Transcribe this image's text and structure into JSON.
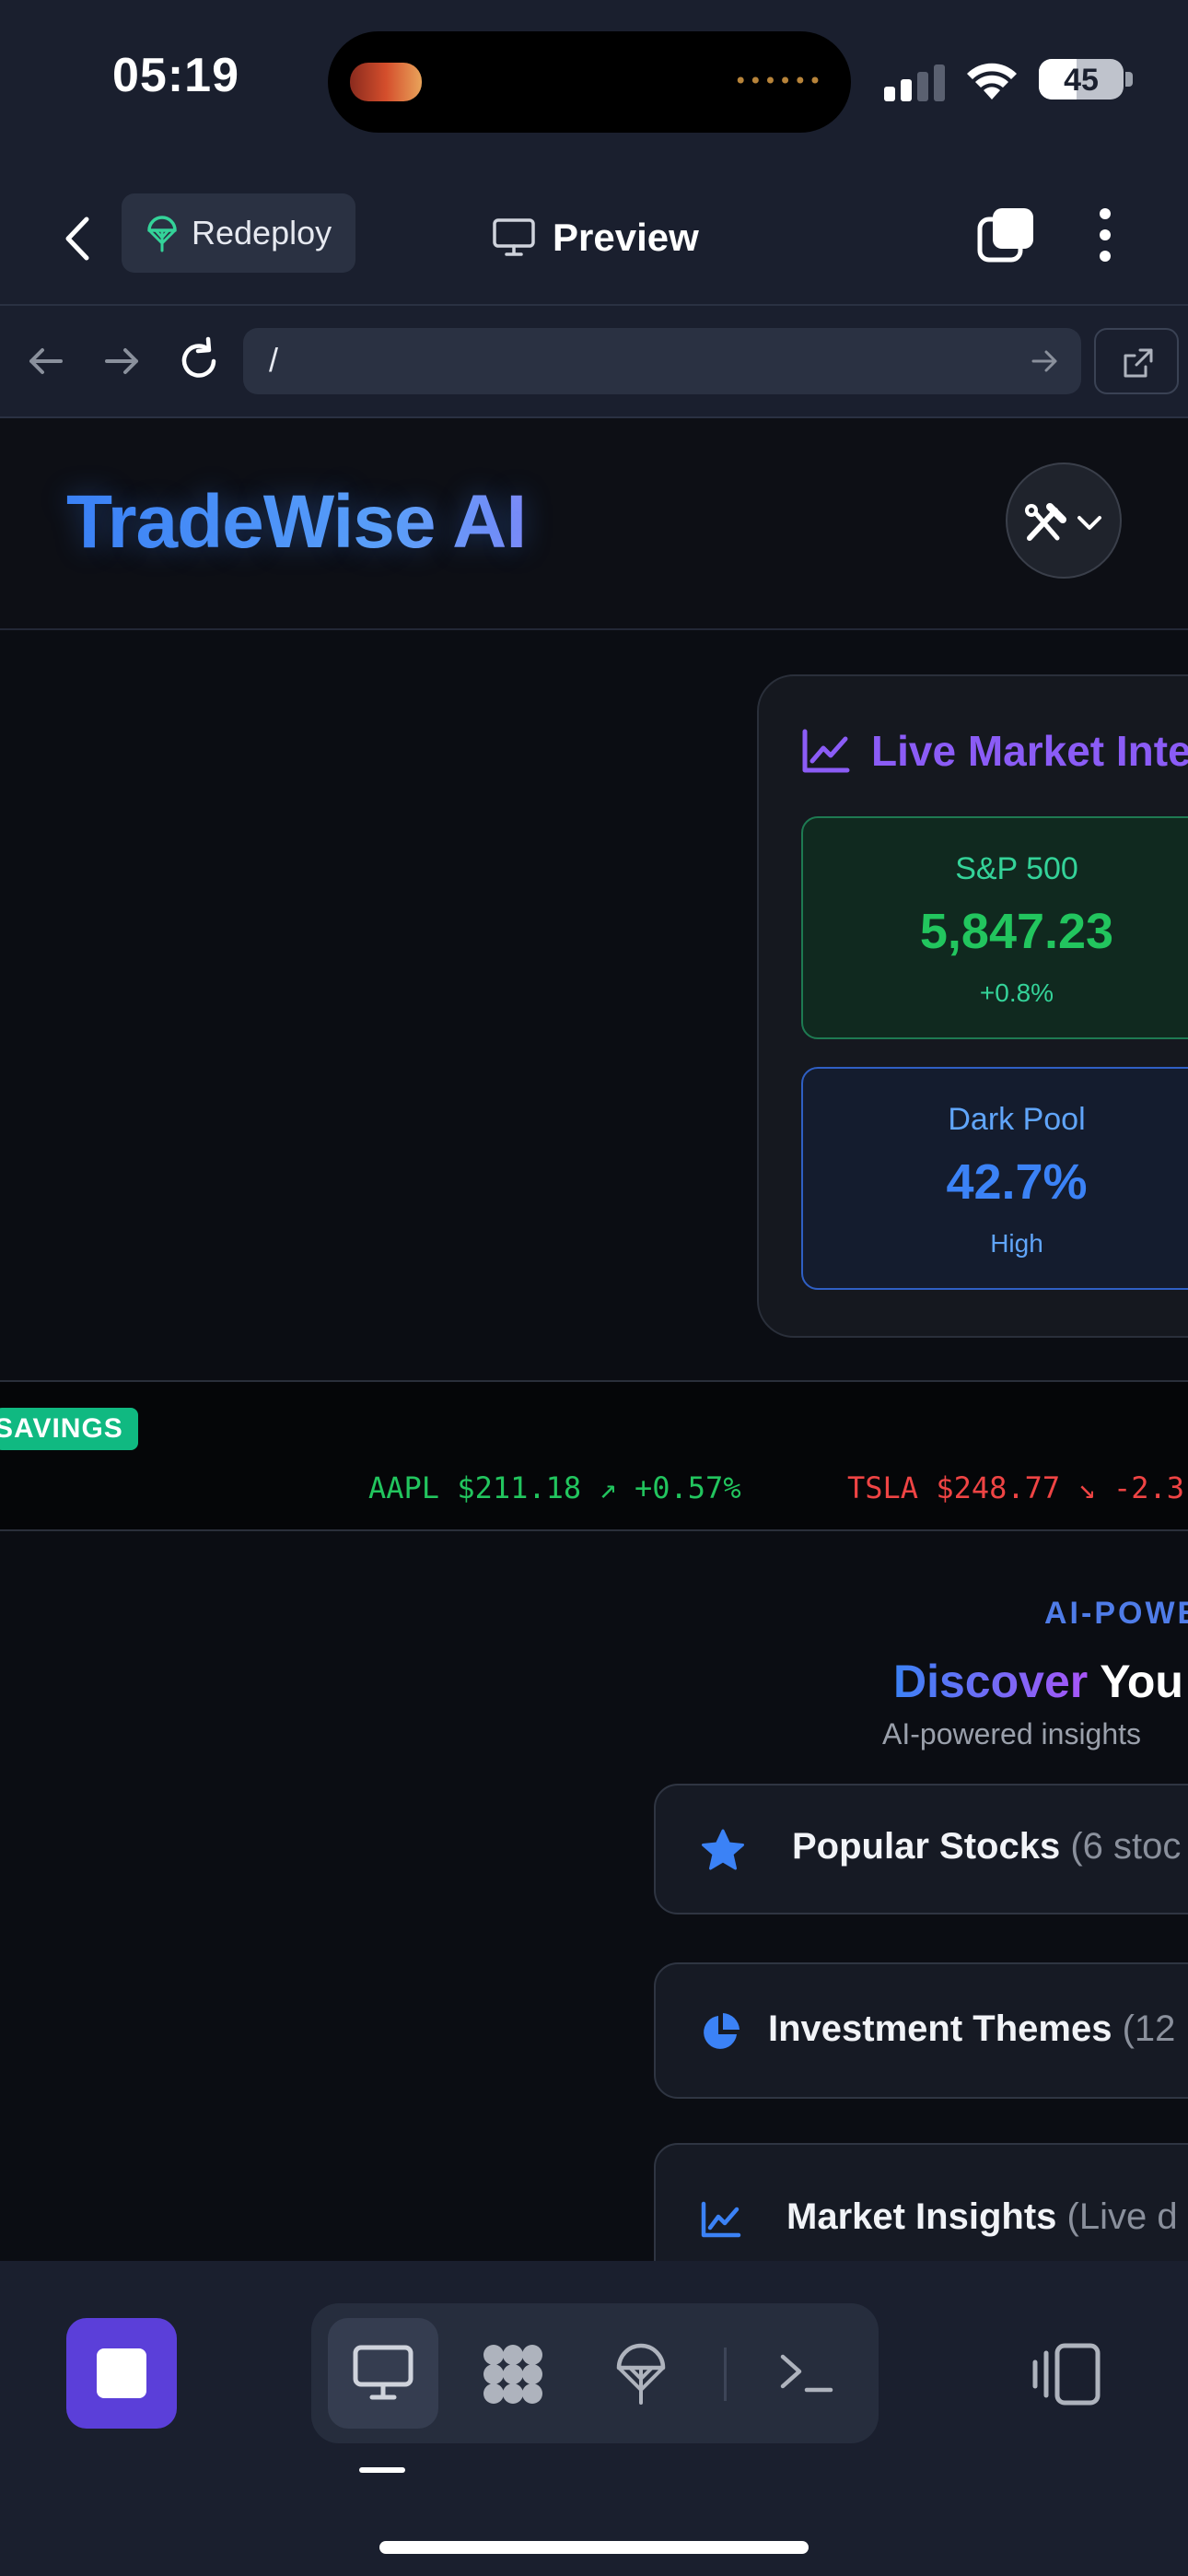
{
  "status_bar": {
    "time": "05:19",
    "battery": "45",
    "battery_level": 0.45
  },
  "app_header": {
    "redeploy_label": "Redeploy",
    "preview_label": "Preview"
  },
  "browser": {
    "url": "/"
  },
  "site": {
    "brand": "TradeWise AI"
  },
  "market": {
    "title": "Live Market Inte",
    "sp500": {
      "label": "S&P 500",
      "value": "5,847.23",
      "change": "+0.8%"
    },
    "dark_pool": {
      "label": "Dark Pool",
      "value": "42.7%",
      "level": "High"
    }
  },
  "ticker": {
    "badge": "SAVINGS",
    "items": [
      {
        "text": "AAPL $211.18 ↗ +0.57%",
        "color": "#22c55e"
      },
      {
        "text": "TSLA $248.77 ↘ -2.3",
        "color": "#ef4444"
      }
    ]
  },
  "discover": {
    "eyebrow": "AI-POWE",
    "title_gradient": "Discover",
    "title_rest": "You",
    "subtitle": "AI-powered insights",
    "categories": [
      {
        "label": "Popular Stocks",
        "count": "(6 stoc",
        "icon": "star-icon"
      },
      {
        "label": "Investment Themes",
        "count": "(12",
        "icon": "pie-chart-icon"
      },
      {
        "label": "Market Insights",
        "count": "(Live d",
        "icon": "chart-line-icon"
      }
    ]
  },
  "colors": {
    "accent_purple": "#8b5cf6",
    "accent_blue": "#3b82f6",
    "positive": "#22c55e",
    "negative": "#ef4444",
    "stop_button": "#5b3fd9"
  }
}
